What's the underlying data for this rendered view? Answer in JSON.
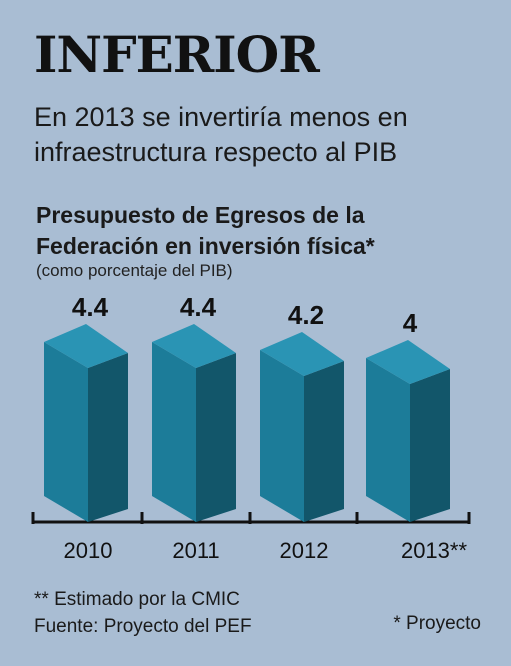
{
  "header": {
    "title": "INFERIOR",
    "subtitle": "En 2013 se invertiría menos en infraestructura respecto al PIB"
  },
  "chart_data": {
    "type": "bar",
    "title": "Presupuesto de Egresos de la Federación en inversión física*",
    "subtitle": "(como porcentaje del PIB)",
    "categories": [
      "2010",
      "2011",
      "2012",
      "2013**"
    ],
    "values": [
      4.4,
      4.4,
      4.2,
      4
    ],
    "value_labels": [
      "4.4",
      "4.4",
      "4.2",
      "4"
    ],
    "xlabel": "",
    "ylabel": "",
    "grid": false,
    "colors": {
      "front": "#1c7c99",
      "side": "#12566a",
      "top": "#2a94b4"
    }
  },
  "footnotes": {
    "estimate": "** Estimado por la CMIC",
    "source": "Fuente: Proyecto del PEF",
    "project": "* Proyecto"
  }
}
